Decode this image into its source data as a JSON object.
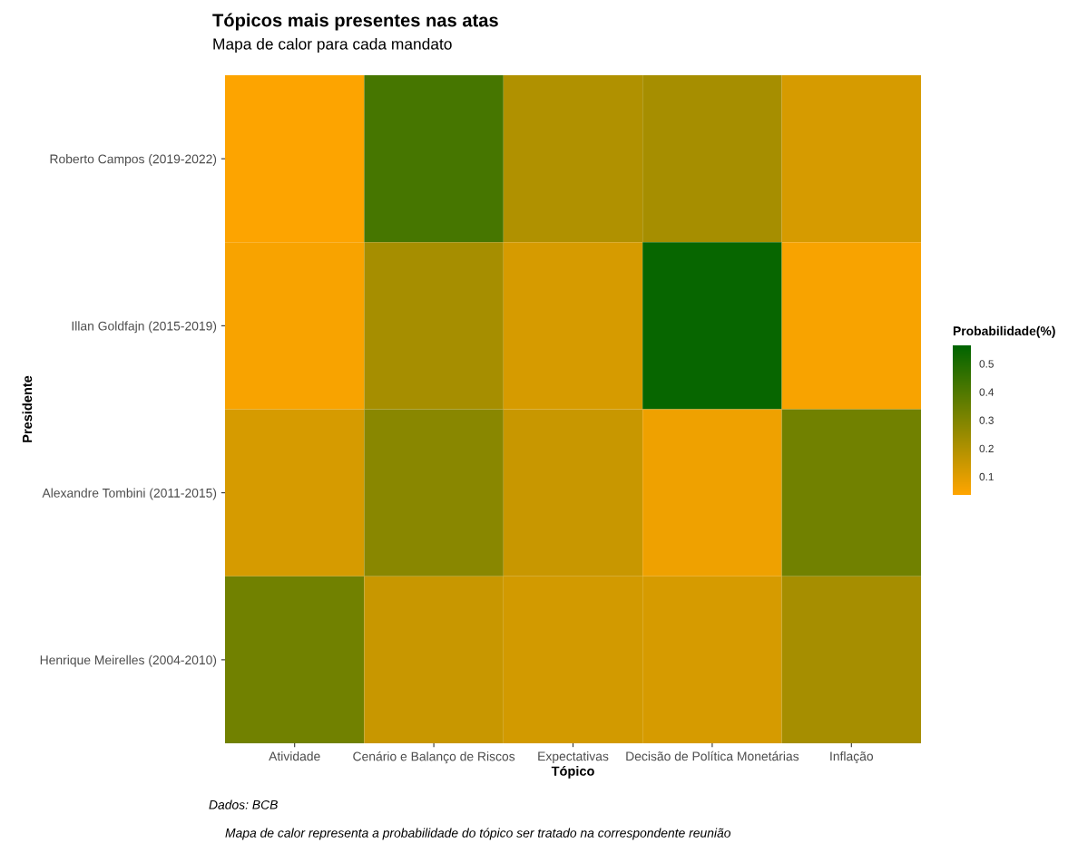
{
  "chart_data": {
    "type": "heatmap",
    "title": "Tópicos mais presentes nas atas",
    "subtitle": "Mapa de calor para cada mandato",
    "xlabel": "Tópico",
    "ylabel": "Presidente",
    "clabel": "Probabilidade(%)",
    "categories": [
      "Atividade",
      "Cenário e Balanço de Riscos",
      "Expectativas",
      "Decisão de Política Monetárias",
      "Inflação"
    ],
    "y_categories": [
      "Roberto Campos (2019-2022)",
      "Illan Goldfajn (2015-2019)",
      "Alexandre Tombini (2011-2015)",
      "Henrique Meirelles (2004-2010)"
    ],
    "cells": [
      [
        0.04,
        0.42,
        0.2,
        0.22,
        0.12
      ],
      [
        0.05,
        0.22,
        0.12,
        0.55,
        0.05
      ],
      [
        0.12,
        0.28,
        0.15,
        0.07,
        0.33
      ],
      [
        0.33,
        0.15,
        0.13,
        0.12,
        0.22
      ]
    ],
    "clim": [
      0.035,
      0.565
    ],
    "cticks": [
      0.1,
      0.2,
      0.3,
      0.4,
      0.5
    ],
    "colors": [
      "#ffa500",
      "#006400"
    ],
    "annotations": [
      "Dados: BCB",
      "Mapa de calor representa a probabilidade do tópico ser tratado na correspondente reunião"
    ]
  }
}
